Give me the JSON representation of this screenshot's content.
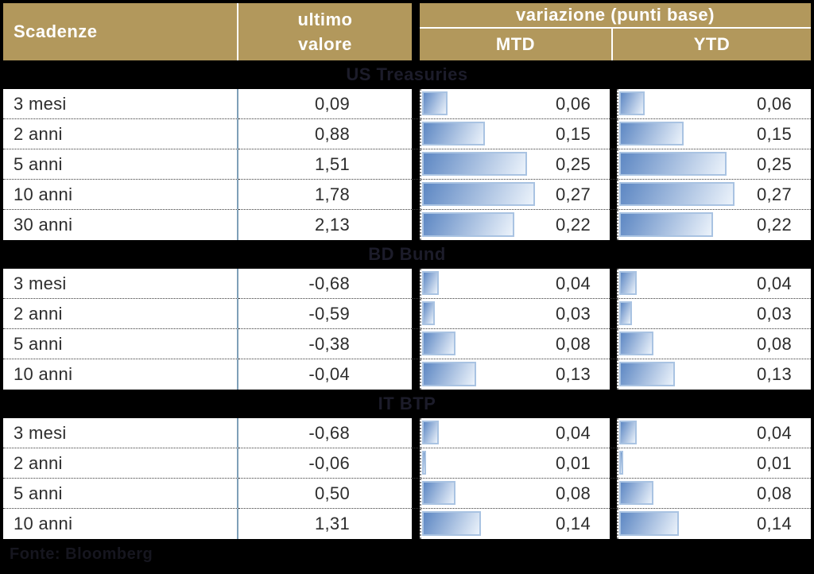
{
  "header": {
    "scadenze": "Scadenze",
    "ultimo_line1": "ultimo",
    "ultimo_line2": "valore",
    "variazione": "variazione (punti base)",
    "mtd": "MTD",
    "ytd": "YTD"
  },
  "footer": {
    "source": "Fonte: Bloomberg"
  },
  "colors": {
    "page_bg": "#000000",
    "header_bg": "#b2985c",
    "header_text": "#ffffff",
    "section_title_text": "#1c1c2a",
    "row_text": "#2d2d2d",
    "divider_blue": "#7f9fb8",
    "bar_fill_start": "#5d87c3",
    "bar_fill_end": "#ecf3fb",
    "bar_border": "#a9c3e2"
  },
  "bar_axis_max": 0.45,
  "chart_data": {
    "type": "table",
    "title": "variazione (punti base)",
    "columns": [
      "Scadenze",
      "ultimo valore",
      "MTD",
      "YTD"
    ],
    "bar_columns": [
      "MTD",
      "YTD"
    ],
    "bar_axis": {
      "min": 0,
      "max": 0.45
    },
    "sections": [
      {
        "title": "US Treasuries",
        "rows": [
          {
            "scadenza": "3 mesi",
            "ultimo_valore": "0,09",
            "mtd": "0,06",
            "ytd": "0,06",
            "mtd_value": 0.06,
            "ytd_value": 0.06
          },
          {
            "scadenza": "2 anni",
            "ultimo_valore": "0,88",
            "mtd": "0,15",
            "ytd": "0,15",
            "mtd_value": 0.15,
            "ytd_value": 0.15
          },
          {
            "scadenza": "5 anni",
            "ultimo_valore": "1,51",
            "mtd": "0,25",
            "ytd": "0,25",
            "mtd_value": 0.25,
            "ytd_value": 0.25
          },
          {
            "scadenza": "10 anni",
            "ultimo_valore": "1,78",
            "mtd": "0,27",
            "ytd": "0,27",
            "mtd_value": 0.27,
            "ytd_value": 0.27
          },
          {
            "scadenza": "30 anni",
            "ultimo_valore": "2,13",
            "mtd": "0,22",
            "ytd": "0,22",
            "mtd_value": 0.22,
            "ytd_value": 0.22
          }
        ]
      },
      {
        "title": "BD Bund",
        "rows": [
          {
            "scadenza": "3 mesi",
            "ultimo_valore": "-0,68",
            "mtd": "0,04",
            "ytd": "0,04",
            "mtd_value": 0.04,
            "ytd_value": 0.04
          },
          {
            "scadenza": "2 anni",
            "ultimo_valore": "-0,59",
            "mtd": "0,03",
            "ytd": "0,03",
            "mtd_value": 0.03,
            "ytd_value": 0.03
          },
          {
            "scadenza": "5 anni",
            "ultimo_valore": "-0,38",
            "mtd": "0,08",
            "ytd": "0,08",
            "mtd_value": 0.08,
            "ytd_value": 0.08
          },
          {
            "scadenza": "10 anni",
            "ultimo_valore": "-0,04",
            "mtd": "0,13",
            "ytd": "0,13",
            "mtd_value": 0.13,
            "ytd_value": 0.13
          }
        ]
      },
      {
        "title": "IT BTP",
        "rows": [
          {
            "scadenza": "3 mesi",
            "ultimo_valore": "-0,68",
            "mtd": "0,04",
            "ytd": "0,04",
            "mtd_value": 0.04,
            "ytd_value": 0.04
          },
          {
            "scadenza": "2 anni",
            "ultimo_valore": "-0,06",
            "mtd": "0,01",
            "ytd": "0,01",
            "mtd_value": 0.01,
            "ytd_value": 0.01
          },
          {
            "scadenza": "5 anni",
            "ultimo_valore": "0,50",
            "mtd": "0,08",
            "ytd": "0,08",
            "mtd_value": 0.08,
            "ytd_value": 0.08
          },
          {
            "scadenza": "10 anni",
            "ultimo_valore": "1,31",
            "mtd": "0,14",
            "ytd": "0,14",
            "mtd_value": 0.14,
            "ytd_value": 0.14
          }
        ]
      }
    ]
  }
}
